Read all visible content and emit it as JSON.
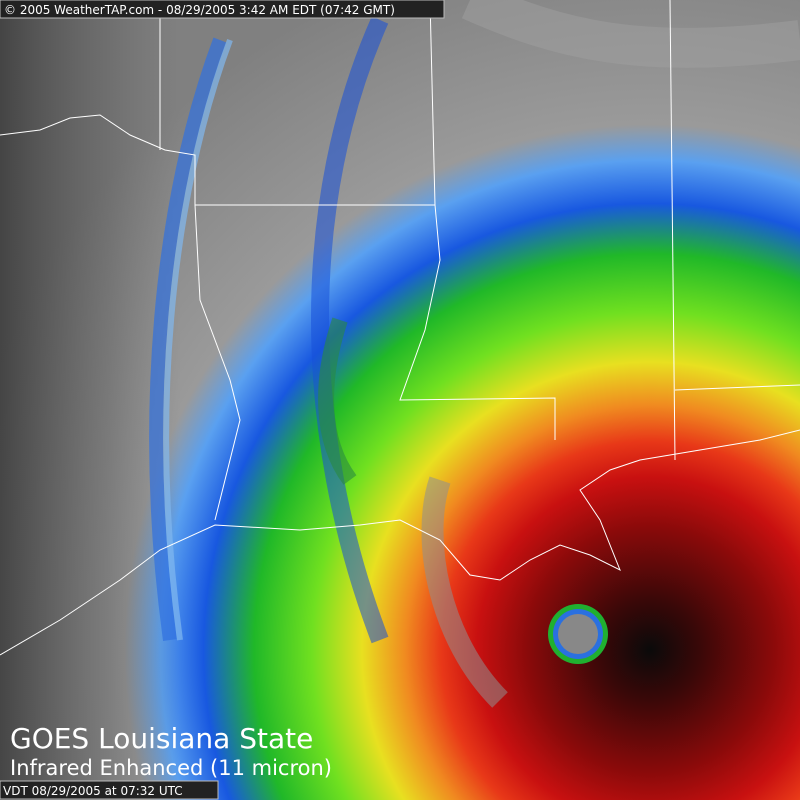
{
  "header": {
    "credit": "© 2005 WeatherTAP.com - 08/29/2005 3:42 AM EDT (07:42 GMT)"
  },
  "overlay": {
    "title": "GOES Louisiana State",
    "subtitle": "Infrared Enhanced (11 micron)",
    "timestamp": "VDT 08/29/2005 at 07:32 UTC"
  }
}
